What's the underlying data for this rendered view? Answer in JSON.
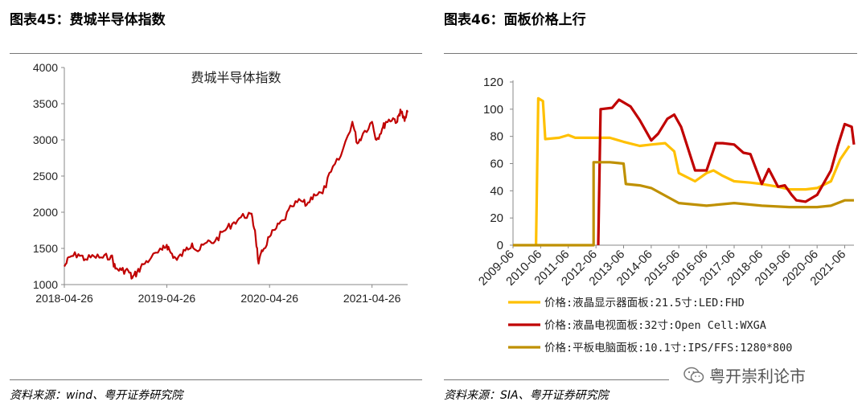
{
  "left_panel": {
    "title": "图表45：费城半导体指数",
    "source": "资料来源：wind、粤开证券研究院"
  },
  "right_panel": {
    "title": "图表46：面板价格上行",
    "source": "资料来源：SIA、粤开证券研究院"
  },
  "watermark": {
    "text": "粤开崇利论市",
    "icon": "wechat-icon"
  },
  "colors": {
    "red": "#c00000",
    "yellow": "#ffc000",
    "gold": "#bf9000",
    "axis": "#888888"
  },
  "chart_data": [
    {
      "type": "line",
      "title": "费城半导体指数",
      "xlabel": "",
      "ylabel": "",
      "x_ticks": [
        "2018-04-26",
        "2019-04-26",
        "2020-04-26",
        "2021-04-26"
      ],
      "y_ticks": [
        1000,
        1500,
        2000,
        2500,
        3000,
        3500,
        4000
      ],
      "ylim": [
        1000,
        4000
      ],
      "xlim": [
        "2018-04-26",
        "2021-08-31"
      ],
      "legend": "none",
      "grid": false,
      "series": [
        {
          "color": "#c00000",
          "points": [
            [
              "2018-04-26",
              1250
            ],
            [
              "2018-05-15",
              1380
            ],
            [
              "2018-06-15",
              1420
            ],
            [
              "2018-07-10",
              1350
            ],
            [
              "2018-08-10",
              1390
            ],
            [
              "2018-09-10",
              1370
            ],
            [
              "2018-10-10",
              1400
            ],
            [
              "2018-10-25",
              1220
            ],
            [
              "2018-11-15",
              1200
            ],
            [
              "2018-12-10",
              1190
            ],
            [
              "2018-12-24",
              1090
            ],
            [
              "2019-01-10",
              1170
            ],
            [
              "2019-02-01",
              1280
            ],
            [
              "2019-03-01",
              1370
            ],
            [
              "2019-04-10",
              1480
            ],
            [
              "2019-04-26",
              1550
            ],
            [
              "2019-05-10",
              1440
            ],
            [
              "2019-06-01",
              1340
            ],
            [
              "2019-07-01",
              1470
            ],
            [
              "2019-07-25",
              1570
            ],
            [
              "2019-08-15",
              1460
            ],
            [
              "2019-09-15",
              1580
            ],
            [
              "2019-10-15",
              1600
            ],
            [
              "2019-11-15",
              1740
            ],
            [
              "2019-12-15",
              1840
            ],
            [
              "2020-01-15",
              1930
            ],
            [
              "2020-02-19",
              1980
            ],
            [
              "2020-03-05",
              1750
            ],
            [
              "2020-03-18",
              1290
            ],
            [
              "2020-04-01",
              1460
            ],
            [
              "2020-04-26",
              1660
            ],
            [
              "2020-05-20",
              1780
            ],
            [
              "2020-06-15",
              1890
            ],
            [
              "2020-07-15",
              2080
            ],
            [
              "2020-08-15",
              2160
            ],
            [
              "2020-09-05",
              2100
            ],
            [
              "2020-10-01",
              2250
            ],
            [
              "2020-11-01",
              2260
            ],
            [
              "2020-12-01",
              2560
            ],
            [
              "2021-01-05",
              2780
            ],
            [
              "2021-02-15",
              3250
            ],
            [
              "2021-03-05",
              2950
            ],
            [
              "2021-03-25",
              3090
            ],
            [
              "2021-04-26",
              3250
            ],
            [
              "2021-05-12",
              3000
            ],
            [
              "2021-06-01",
              3150
            ],
            [
              "2021-06-15",
              3250
            ],
            [
              "2021-07-10",
              3300
            ],
            [
              "2021-07-25",
              3250
            ],
            [
              "2021-08-05",
              3420
            ],
            [
              "2021-08-20",
              3260
            ],
            [
              "2021-08-31",
              3380
            ]
          ]
        }
      ]
    },
    {
      "type": "line",
      "title": "",
      "xlabel": "",
      "ylabel": "",
      "x_ticks": [
        "2009-06",
        "2010-06",
        "2011-06",
        "2012-06",
        "2013-06",
        "2014-06",
        "2015-06",
        "2016-06",
        "2017-06",
        "2018-06",
        "2019-06",
        "2020-06",
        "2021-06"
      ],
      "y_ticks": [
        0,
        20,
        40,
        60,
        80,
        100,
        120
      ],
      "ylim": [
        0,
        120
      ],
      "xlim": [
        "2009-06",
        "2021-10"
      ],
      "legend": "bottom",
      "grid": false,
      "series": [
        {
          "name": "价格:液晶显示器面板:21.5寸:LED:FHD",
          "color": "#ffc000",
          "points": [
            [
              "2010-04",
              0
            ],
            [
              "2010-05",
              108
            ],
            [
              "2010-07",
              106
            ],
            [
              "2010-08",
              78
            ],
            [
              "2011-02",
              79
            ],
            [
              "2011-06",
              81
            ],
            [
              "2011-09",
              79
            ],
            [
              "2012-06",
              79
            ],
            [
              "2012-12",
              79
            ],
            [
              "2013-06",
              76
            ],
            [
              "2014-01",
              73
            ],
            [
              "2014-06",
              74
            ],
            [
              "2014-12",
              75
            ],
            [
              "2015-04",
              69
            ],
            [
              "2015-06",
              53
            ],
            [
              "2016-01",
              47
            ],
            [
              "2016-06",
              53
            ],
            [
              "2016-09",
              55
            ],
            [
              "2017-01",
              51
            ],
            [
              "2017-06",
              47
            ],
            [
              "2018-01",
              46
            ],
            [
              "2018-06",
              45
            ],
            [
              "2019-01",
              43
            ],
            [
              "2019-06",
              41
            ],
            [
              "2020-01",
              41
            ],
            [
              "2020-06",
              42
            ],
            [
              "2020-12",
              47
            ],
            [
              "2021-04",
              63
            ],
            [
              "2021-08",
              73
            ]
          ]
        },
        {
          "name": "价格:液晶电视面板:32寸:Open Cell:WXGA",
          "color": "#c00000",
          "points": [
            [
              "2012-07",
              0
            ],
            [
              "2012-08",
              100
            ],
            [
              "2013-01",
              101
            ],
            [
              "2013-04",
              107
            ],
            [
              "2013-09",
              102
            ],
            [
              "2014-01",
              92
            ],
            [
              "2014-06",
              77
            ],
            [
              "2014-09",
              82
            ],
            [
              "2015-01",
              93
            ],
            [
              "2015-04",
              96
            ],
            [
              "2015-07",
              87
            ],
            [
              "2016-01",
              55
            ],
            [
              "2016-06",
              55
            ],
            [
              "2016-10",
              75
            ],
            [
              "2017-01",
              75
            ],
            [
              "2017-06",
              74
            ],
            [
              "2017-10",
              68
            ],
            [
              "2018-01",
              67
            ],
            [
              "2018-06",
              45
            ],
            [
              "2018-09",
              56
            ],
            [
              "2019-01",
              43
            ],
            [
              "2019-04",
              44
            ],
            [
              "2019-07",
              37
            ],
            [
              "2019-09",
              33
            ],
            [
              "2020-01",
              32
            ],
            [
              "2020-06",
              37
            ],
            [
              "2020-12",
              55
            ],
            [
              "2021-03",
              73
            ],
            [
              "2021-06",
              89
            ],
            [
              "2021-09",
              87
            ],
            [
              "2021-10",
              74
            ]
          ]
        },
        {
          "name": "价格:平板电脑面板:10.1寸:IPS/FFS:1280*800",
          "color": "#bf9000",
          "points": [
            [
              "2009-06",
              0
            ],
            [
              "2012-05",
              0
            ],
            [
              "2012-05",
              61
            ],
            [
              "2012-12",
              61
            ],
            [
              "2013-06",
              60
            ],
            [
              "2013-07",
              45
            ],
            [
              "2014-01",
              44
            ],
            [
              "2014-06",
              42
            ],
            [
              "2015-06",
              31
            ],
            [
              "2016-06",
              29
            ],
            [
              "2017-06",
              31
            ],
            [
              "2018-06",
              29
            ],
            [
              "2019-06",
              28
            ],
            [
              "2020-06",
              28
            ],
            [
              "2020-12",
              29
            ],
            [
              "2021-06",
              33
            ],
            [
              "2021-10",
              33
            ]
          ]
        }
      ]
    }
  ]
}
